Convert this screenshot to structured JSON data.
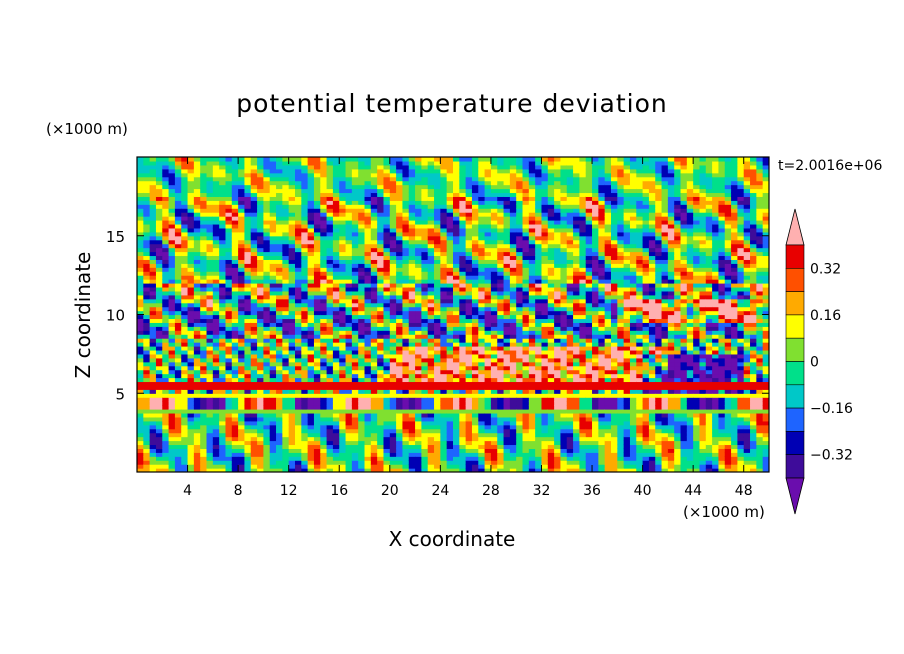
{
  "chart_data": {
    "type": "heatmap",
    "title": "potential temperature deviation",
    "xlabel": "X coordinate",
    "ylabel": "Z coordinate",
    "x_unit": "(×1000 m)",
    "y_unit": "(×1000 m)",
    "time_label": "t=2.0016e+06",
    "xlim": [
      0,
      50
    ],
    "ylim": [
      0,
      20
    ],
    "x_ticks": [
      4,
      8,
      12,
      16,
      20,
      24,
      28,
      32,
      36,
      40,
      44,
      48
    ],
    "y_ticks": [
      5,
      10,
      15
    ],
    "colorbar": {
      "levels": [
        -0.4,
        -0.32,
        -0.24,
        -0.16,
        -0.08,
        0,
        0.08,
        0.16,
        0.24,
        0.32,
        0.4
      ],
      "tick_values": [
        0.32,
        0.16,
        0,
        -0.16,
        -0.32
      ],
      "tick_labels": [
        "0.32",
        "0.16",
        "0",
        "−0.16",
        "−0.32"
      ],
      "extend": "both",
      "colors": [
        "#6a0dad",
        "#3e0c9a",
        "#0000b4",
        "#1e64ff",
        "#00c8c8",
        "#00e08a",
        "#80e030",
        "#ffff00",
        "#ffaa00",
        "#ff5000",
        "#e80000",
        "#ffb0b0"
      ]
    }
  }
}
